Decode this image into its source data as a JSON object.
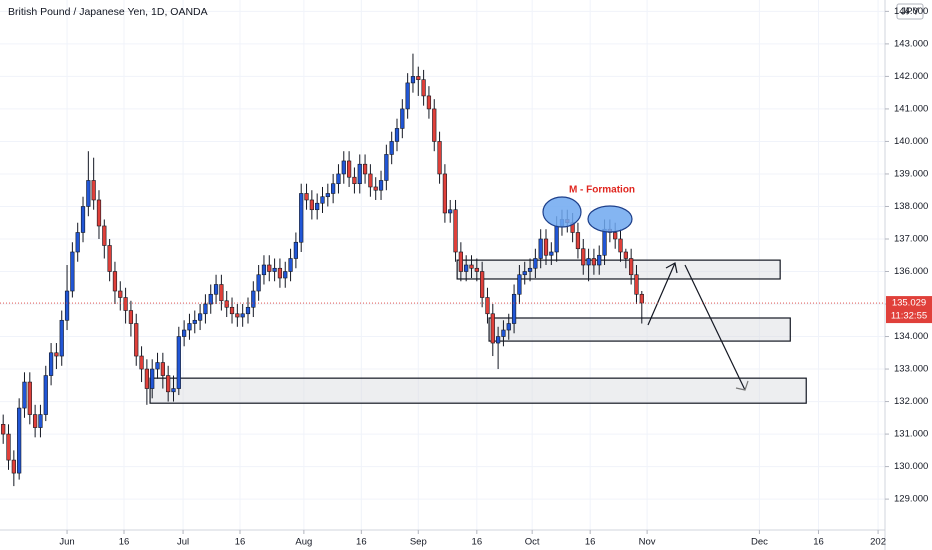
{
  "chart_data": {
    "type": "candlestick",
    "title": "British Pound / Japanese Yen, 1D, OANDA",
    "currency_label": "JPY",
    "annotation": "M - Formation",
    "up_color": "#2156d6",
    "down_color": "#e0403a",
    "grid": true,
    "ylim": [
      128.05,
      144.35
    ],
    "yticks": [
      {
        "value": 129,
        "label": "129.000"
      },
      {
        "value": 130,
        "label": "130.000"
      },
      {
        "value": 131,
        "label": "131.000"
      },
      {
        "value": 132,
        "label": "132.000"
      },
      {
        "value": 133,
        "label": "133.000"
      },
      {
        "value": 134,
        "label": "134.000"
      },
      {
        "value": 135,
        "label": "135.000"
      },
      {
        "value": 136,
        "label": "136.000"
      },
      {
        "value": 137,
        "label": "137.000"
      },
      {
        "value": 138,
        "label": "138.000"
      },
      {
        "value": 139,
        "label": "139.000"
      },
      {
        "value": 140,
        "label": "140.000"
      },
      {
        "value": 141,
        "label": "141.000"
      },
      {
        "value": 142,
        "label": "142.000"
      },
      {
        "value": 143,
        "label": "143.000"
      },
      {
        "value": 144,
        "label": "144.000"
      }
    ],
    "xlim": [
      -0.6,
      165.7
    ],
    "xticks": [
      {
        "value": 12,
        "label": "Jun"
      },
      {
        "value": 22.7,
        "label": "16"
      },
      {
        "value": 33.8,
        "label": "Jul"
      },
      {
        "value": 44.5,
        "label": "16"
      },
      {
        "value": 56.5,
        "label": "Aug"
      },
      {
        "value": 67.3,
        "label": "16"
      },
      {
        "value": 78,
        "label": "Sep"
      },
      {
        "value": 89,
        "label": "16"
      },
      {
        "value": 99.4,
        "label": "Oct"
      },
      {
        "value": 110.3,
        "label": "16"
      },
      {
        "value": 121,
        "label": "Nov"
      },
      {
        "value": 142.1,
        "label": "Dec"
      },
      {
        "value": 153.2,
        "label": "16"
      },
      {
        "value": 164.4,
        "label": "202"
      }
    ],
    "current_price": 135.029,
    "countdown": "11:32:55",
    "zones": [
      {
        "x0": 85.3,
        "x1": 146,
        "top": 136.35,
        "bottom": 135.77
      },
      {
        "x0": 91.3,
        "x1": 147.9,
        "top": 134.57,
        "bottom": 133.86
      },
      {
        "x0": 27.6,
        "x1": 150.9,
        "top": 132.72,
        "bottom": 131.95
      }
    ],
    "open": [
      131.3,
      131.0,
      130.2,
      129.8,
      131.8,
      132.6,
      131.6,
      131.2,
      131.6,
      132.8,
      133.5,
      133.4,
      134.5,
      135.4,
      136.6,
      137.2,
      138.0,
      138.8,
      138.2,
      137.4,
      136.8,
      136.0,
      135.4,
      135.2,
      134.8,
      134.4,
      133.4,
      133.0,
      132.4,
      133.0,
      133.2,
      132.8,
      132.3,
      132.4,
      134.0,
      134.2,
      134.4,
      134.5,
      134.7,
      135.0,
      135.3,
      135.6,
      135.1,
      134.9,
      134.7,
      134.6,
      134.7,
      134.9,
      135.4,
      135.9,
      136.2,
      136.0,
      136.1,
      135.8,
      136.0,
      136.4,
      136.9,
      138.4,
      138.2,
      137.9,
      138.1,
      138.3,
      138.4,
      138.7,
      139.0,
      139.4,
      138.9,
      138.7,
      139.3,
      139.0,
      138.6,
      138.5,
      138.8,
      139.6,
      140.0,
      140.4,
      141.0,
      141.8,
      142.0,
      141.9,
      141.4,
      141.0,
      140.0,
      139.0,
      137.8,
      137.9,
      136.6,
      136.0,
      136.2,
      136.1,
      136.0,
      135.2,
      134.7,
      133.8,
      134.0,
      134.2,
      134.4,
      135.3,
      135.9,
      136.0,
      136.1,
      136.4,
      137.0,
      136.5,
      136.6,
      137.4,
      137.6,
      137.5,
      137.2,
      136.7,
      136.2,
      136.4,
      136.2,
      136.5,
      137.3,
      137.2,
      137.0,
      136.6,
      136.4,
      135.9,
      135.3
    ],
    "high": [
      131.6,
      131.3,
      130.5,
      132.1,
      132.9,
      132.9,
      131.9,
      131.9,
      133.1,
      133.8,
      133.8,
      134.8,
      136.2,
      136.9,
      137.5,
      138.3,
      139.7,
      139.5,
      138.5,
      137.6,
      137.0,
      136.3,
      135.7,
      135.5,
      135.1,
      134.7,
      133.7,
      133.3,
      133.3,
      133.5,
      133.5,
      133.1,
      132.8,
      134.3,
      134.5,
      134.7,
      134.8,
      135.0,
      135.3,
      135.6,
      135.9,
      135.9,
      135.4,
      135.2,
      135.0,
      135.0,
      135.2,
      135.7,
      136.2,
      136.5,
      136.5,
      136.4,
      136.4,
      136.3,
      136.7,
      137.2,
      138.7,
      138.7,
      138.5,
      138.4,
      138.6,
      138.7,
      139.0,
      139.3,
      139.7,
      139.7,
      139.2,
      139.6,
      139.6,
      139.3,
      138.9,
      139.1,
      139.9,
      140.3,
      140.7,
      141.3,
      142.1,
      142.7,
      142.3,
      142.2,
      141.7,
      141.3,
      140.3,
      139.3,
      138.2,
      138.2,
      136.9,
      136.5,
      136.5,
      136.4,
      136.3,
      135.5,
      135.0,
      134.3,
      134.5,
      134.7,
      135.6,
      136.2,
      136.3,
      136.4,
      136.7,
      137.3,
      137.3,
      136.9,
      137.7,
      137.9,
      137.9,
      137.8,
      137.5,
      137.0,
      136.7,
      136.7,
      136.8,
      137.6,
      137.6,
      137.5,
      137.3,
      136.7,
      136.7,
      136.2,
      135.4
    ],
    "low": [
      130.7,
      129.9,
      129.4,
      129.6,
      131.5,
      131.3,
      130.9,
      130.9,
      131.4,
      132.5,
      133.0,
      133.1,
      134.2,
      135.2,
      136.3,
      136.9,
      137.7,
      137.9,
      137.0,
      136.4,
      135.7,
      135.0,
      134.8,
      134.4,
      134.0,
      133.1,
      132.6,
      131.9,
      132.1,
      132.7,
      132.4,
      132.0,
      132.0,
      132.2,
      133.7,
      133.9,
      134.1,
      134.2,
      134.4,
      134.7,
      135.0,
      134.8,
      134.6,
      134.4,
      134.3,
      134.3,
      134.4,
      134.6,
      135.1,
      135.6,
      135.7,
      135.7,
      135.5,
      135.5,
      135.7,
      136.1,
      136.6,
      137.9,
      137.6,
      137.6,
      137.8,
      138.0,
      138.1,
      138.4,
      138.7,
      138.6,
      138.4,
      138.4,
      138.7,
      138.3,
      138.2,
      138.2,
      138.5,
      139.3,
      139.7,
      140.1,
      140.7,
      141.5,
      141.4,
      141.1,
      140.7,
      139.7,
      138.7,
      137.5,
      137.5,
      136.3,
      135.7,
      135.7,
      135.8,
      135.7,
      134.9,
      134.4,
      133.4,
      133.0,
      133.7,
      133.9,
      134.1,
      135.0,
      135.6,
      135.7,
      135.8,
      136.1,
      136.2,
      136.2,
      136.3,
      137.1,
      137.2,
      136.9,
      136.4,
      135.9,
      135.7,
      135.9,
      135.9,
      136.2,
      136.9,
      136.7,
      136.3,
      136.1,
      135.6,
      135.0,
      134.4
    ],
    "close": [
      131.0,
      130.2,
      129.8,
      131.8,
      132.6,
      131.6,
      131.2,
      131.6,
      132.8,
      133.5,
      133.4,
      134.5,
      135.4,
      136.6,
      137.2,
      138.0,
      138.8,
      138.2,
      137.4,
      136.8,
      136.0,
      135.4,
      135.2,
      134.8,
      134.4,
      133.4,
      133.0,
      132.4,
      133.0,
      133.2,
      132.8,
      132.3,
      132.4,
      134.0,
      134.2,
      134.4,
      134.5,
      134.7,
      135.0,
      135.3,
      135.6,
      135.1,
      134.9,
      134.7,
      134.6,
      134.7,
      134.9,
      135.4,
      135.9,
      136.2,
      136.0,
      136.1,
      135.8,
      136.0,
      136.4,
      136.9,
      138.4,
      138.2,
      137.9,
      138.1,
      138.3,
      138.4,
      138.7,
      139.0,
      139.4,
      138.9,
      138.7,
      139.3,
      139.0,
      138.6,
      138.5,
      138.8,
      139.6,
      140.0,
      140.4,
      141.0,
      141.8,
      142.0,
      141.9,
      141.4,
      141.0,
      140.0,
      139.0,
      137.8,
      137.9,
      136.6,
      136.0,
      136.2,
      136.1,
      136.0,
      135.2,
      134.7,
      133.8,
      134.0,
      134.2,
      134.4,
      135.3,
      135.9,
      136.0,
      136.1,
      136.4,
      137.0,
      136.5,
      136.6,
      137.4,
      137.6,
      137.5,
      137.2,
      136.7,
      136.2,
      136.4,
      136.2,
      136.5,
      137.3,
      137.2,
      137.0,
      136.6,
      136.4,
      135.9,
      135.3,
      135.03
    ]
  }
}
